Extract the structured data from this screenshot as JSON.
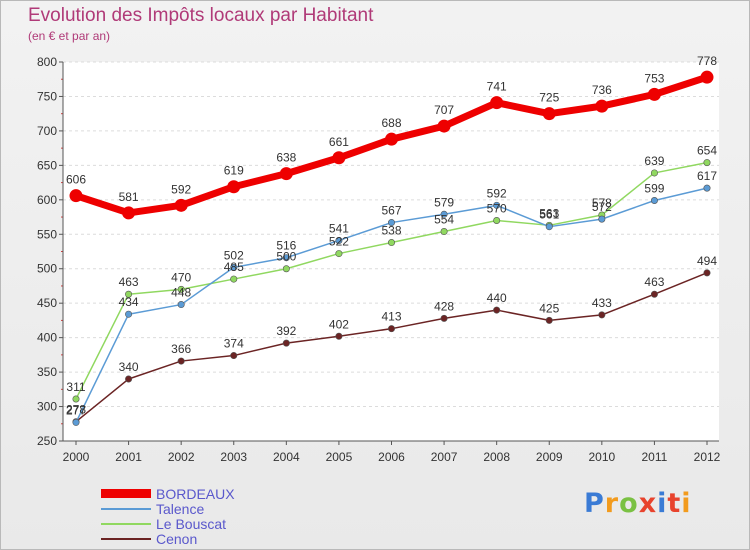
{
  "header": {
    "title": "Evolution des Impôts locaux par Habitant",
    "subtitle": "(en € et par an)"
  },
  "logo": {
    "text": "Proxiti",
    "colors": [
      "#3a7bd5",
      "#f29b1d",
      "#7ac143",
      "#e8432d",
      "#3a7bd5",
      "#e8432d",
      "#f29b1d"
    ]
  },
  "chart_data": {
    "type": "line",
    "title": "Evolution des Impôts locaux par Habitant",
    "subtitle": "(en € et par an)",
    "x": [
      "2000",
      "2001",
      "2002",
      "2003",
      "2004",
      "2005",
      "2006",
      "2007",
      "2008",
      "2009",
      "2010",
      "2011",
      "2012"
    ],
    "ylim": [
      250,
      800
    ],
    "yticks": [
      250,
      300,
      350,
      400,
      450,
      500,
      550,
      600,
      650,
      700,
      750,
      800
    ],
    "grid": "horizontal dashed",
    "legend_position": "bottom-left",
    "series": [
      {
        "name": "BORDEAUX",
        "color": "#ee0000",
        "values": [
          606,
          581,
          592,
          619,
          638,
          661,
          688,
          707,
          741,
          725,
          736,
          753,
          778
        ]
      },
      {
        "name": "Talence",
        "color": "#5b9bd5",
        "values": [
          277,
          434,
          448,
          502,
          516,
          541,
          567,
          579,
          592,
          561,
          572,
          599,
          617
        ]
      },
      {
        "name": "Le Bouscat",
        "color": "#90d860",
        "values": [
          311,
          463,
          470,
          485,
          500,
          522,
          538,
          554,
          570,
          563,
          578,
          639,
          654
        ]
      },
      {
        "name": "Cenon",
        "color": "#6b2424",
        "values": [
          278,
          340,
          366,
          374,
          392,
          402,
          413,
          428,
          440,
          425,
          433,
          463,
          494
        ]
      }
    ]
  }
}
